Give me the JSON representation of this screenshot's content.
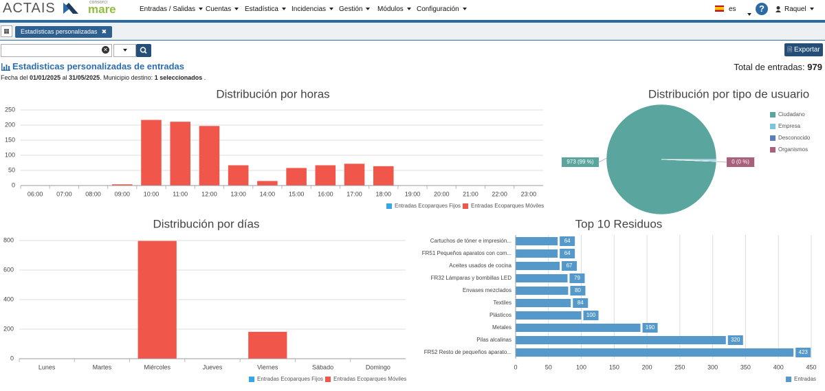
{
  "header": {
    "logo": "ACTAIS",
    "partner_logo_top": "consorci",
    "partner_logo": "mare",
    "nav": [
      "Entradas / Salidas",
      "Cuentas",
      "Estadística",
      "Incidencias",
      "Gestión",
      "Módulos",
      "Configuración"
    ],
    "language": "es",
    "user": "Raquel"
  },
  "tab": {
    "label": "Estadísticas personalizadas"
  },
  "toolbar": {
    "export": "Exportar"
  },
  "report": {
    "title": "Estadisticas personalizadas de entradas",
    "total_label": "Total de entradas:",
    "total": 979,
    "filter_parts": [
      "Fecha del ",
      "01/01/2025",
      " al ",
      "31/05/2025",
      ". Municipio destino: ",
      "1 seleccionados",
      " ."
    ]
  },
  "chart_data": [
    {
      "type": "bar",
      "title": "Distribución por horas",
      "categories": [
        "06:00",
        "07:00",
        "08:00",
        "09:00",
        "10:00",
        "11:00",
        "12:00",
        "13:00",
        "14:00",
        "15:00",
        "16:00",
        "17:00",
        "18:00",
        "19:00",
        "20:00",
        "21:00",
        "22:00",
        "23:00"
      ],
      "series": [
        {
          "name": "Entradas Ecoparques Fijos",
          "color": "#35a7e6",
          "values": [
            0,
            0,
            0,
            0,
            0,
            0,
            0,
            0,
            0,
            0,
            0,
            0,
            0,
            0,
            0,
            0,
            0,
            0
          ]
        },
        {
          "name": "Entradas Ecoparques Móviles",
          "color": "#f0574a",
          "values": [
            0,
            0,
            0,
            4,
            217,
            211,
            197,
            67,
            15,
            58,
            67,
            72,
            64,
            0,
            0,
            0,
            0,
            0
          ]
        }
      ],
      "ylim": [
        0,
        250
      ],
      "yticks": [
        0,
        50,
        100,
        150,
        200,
        250
      ],
      "grid": true
    },
    {
      "type": "pie",
      "title": "Distribución por tipo de usuario",
      "categories": [
        "Ciudadano",
        "Empresa",
        "Desconocido",
        "Organismos"
      ],
      "colors": [
        "#5aa69e",
        "#7cc5e0",
        "#5b7fb8",
        "#a8607c"
      ],
      "values": [
        973,
        4,
        2,
        0
      ],
      "value_labels": [
        "973 (99 %)",
        null,
        null,
        "0 (0 %)"
      ]
    },
    {
      "type": "bar",
      "title": "Distribución por días",
      "categories": [
        "Lunes",
        "Martes",
        "Miércoles",
        "Jueves",
        "Viernes",
        "Sábado",
        "Domingo"
      ],
      "series": [
        {
          "name": "Entradas Ecoparques Fijos",
          "color": "#35a7e6",
          "values": [
            0,
            0,
            0,
            0,
            0,
            0,
            0
          ]
        },
        {
          "name": "Entradas Ecoparques Móviles",
          "color": "#f0574a",
          "values": [
            0,
            0,
            797,
            0,
            182,
            0,
            0
          ]
        }
      ],
      "ylim": [
        0,
        800
      ],
      "yticks": [
        0,
        200,
        400,
        600,
        800
      ],
      "grid": true
    },
    {
      "type": "bar",
      "horizontal": true,
      "title": "Top 10 Residuos",
      "categories": [
        "Cartuchos de tóner e impresión...",
        "FR51 Pequeños aparatos con com...",
        "Aceites usados de cocina",
        "FR32 Lámparas y bombillas LED",
        "Envases mezclados",
        "Textiles",
        "Plásticos",
        "Metales",
        "Pilas alcalinas",
        "FR52 Resto de pequeños aparato..."
      ],
      "series": [
        {
          "name": "Entradas",
          "color": "#5499c9",
          "values": [
            64,
            64,
            67,
            79,
            80,
            84,
            100,
            190,
            320,
            423
          ]
        }
      ],
      "xlim": [
        0,
        450
      ],
      "xticks": [
        0,
        50,
        100,
        150,
        200,
        250,
        300,
        350,
        400,
        450
      ],
      "grid": true,
      "show_value_labels": true
    }
  ]
}
